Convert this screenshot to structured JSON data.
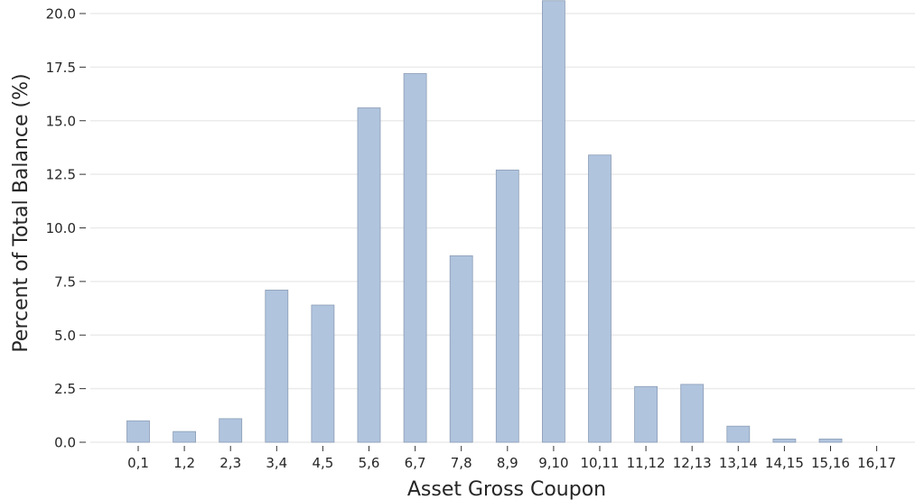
{
  "chart_data": {
    "type": "bar",
    "xlabel": "Asset Gross Coupon",
    "ylabel": "Percent of Total Balance (%)",
    "categories": [
      "0,1",
      "1,2",
      "2,3",
      "3,4",
      "4,5",
      "5,6",
      "6,7",
      "7,8",
      "8,9",
      "9,10",
      "10,11",
      "11,12",
      "12,13",
      "13,14",
      "14,15",
      "15,16",
      "16,17"
    ],
    "values": [
      1.0,
      0.5,
      1.1,
      7.1,
      6.4,
      15.6,
      17.2,
      8.7,
      12.7,
      20.6,
      13.4,
      2.6,
      2.7,
      0.75,
      0.15,
      0.15,
      0.0
    ],
    "ylim": [
      0,
      20.6
    ],
    "yticks": [
      "0.0",
      "2.5",
      "5.0",
      "7.5",
      "10.0",
      "12.5",
      "15.0",
      "17.5",
      "20.0"
    ],
    "grid": "horizontal",
    "colors": {
      "bar_fill": "#b0c4de",
      "bar_edge": "#8c9db5",
      "grid": "#ebebeb"
    }
  }
}
